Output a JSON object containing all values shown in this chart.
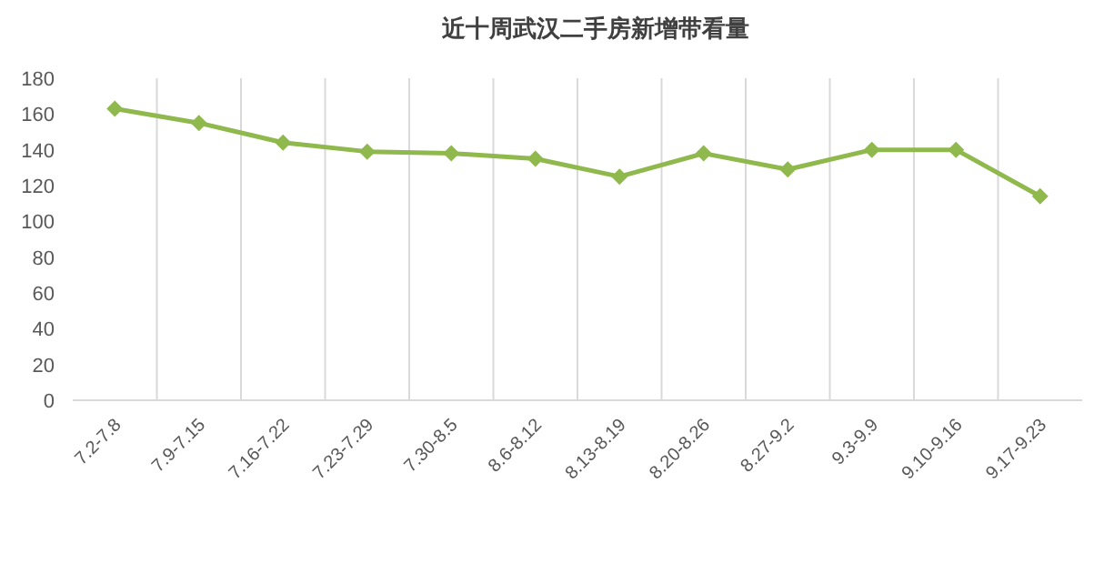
{
  "chart_data": {
    "type": "line",
    "title": "近十周武汉二手房新增带看量",
    "categories": [
      "7.2-7.8",
      "7.9-7.15",
      "7.16-7.22",
      "7.23-7.29",
      "7.30-8.5",
      "8.6-8.12",
      "8.13-8.19",
      "8.20-8.26",
      "8.27-9.2",
      "9.3-9.9",
      "9.10-9.16",
      "9.17-9.23"
    ],
    "series": [
      {
        "color": "#8fb84d",
        "values": [
          163,
          155,
          144,
          139,
          138,
          135,
          125,
          138,
          129,
          140,
          140,
          114
        ]
      }
    ],
    "ylim": [
      0,
      180
    ],
    "yticks": [
      0,
      20,
      40,
      60,
      80,
      100,
      120,
      140,
      160,
      180
    ],
    "grid": "x",
    "marker": "diamond",
    "line_style": "solid"
  }
}
